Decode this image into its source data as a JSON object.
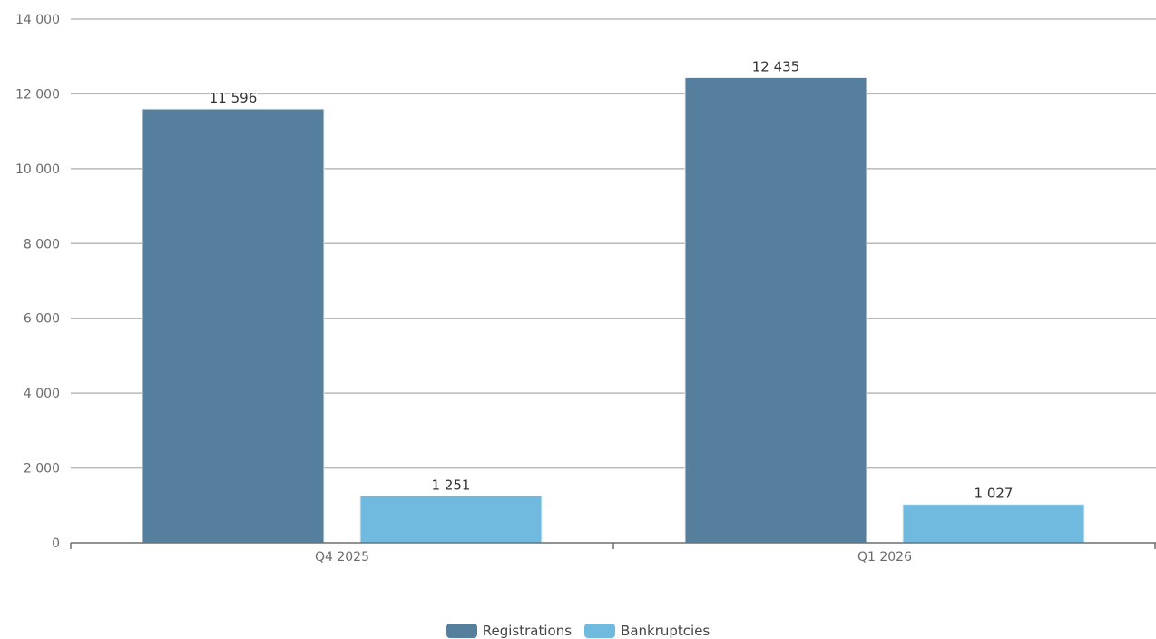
{
  "chart_data": {
    "type": "bar",
    "categories": [
      "Q4 2025",
      "Q1 2026"
    ],
    "series": [
      {
        "name": "Registrations",
        "values": [
          11596,
          12435
        ],
        "labels": [
          "11 596",
          "12 435"
        ],
        "color": "#557f9d"
      },
      {
        "name": "Bankruptcies",
        "values": [
          1251,
          1027
        ],
        "labels": [
          "1 251",
          "1 027"
        ],
        "color": "#71badf"
      }
    ],
    "ylim": [
      0,
      14000
    ],
    "yticks": [
      0,
      2000,
      4000,
      6000,
      8000,
      10000,
      12000,
      14000
    ],
    "ytick_labels": [
      "0",
      "2 000",
      "4 000",
      "6 000",
      "8 000",
      "10 000",
      "12 000",
      "14 000"
    ],
    "grid": true,
    "legend_position": "bottom-center"
  }
}
